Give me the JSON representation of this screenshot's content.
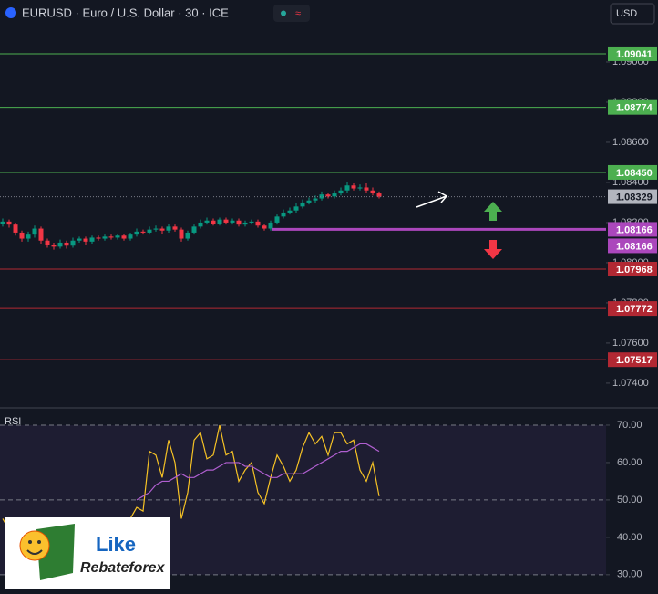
{
  "chart_data": [
    {
      "type": "candlestick",
      "title": "EURUSD · Euro / U.S. Dollar · 30 · ICE",
      "currency": "USD",
      "ylim": [
        1.07286,
        1.09309
      ],
      "yticks": [
        {
          "value": 1.074,
          "label": "1.07400"
        },
        {
          "value": 1.076,
          "label": "1.07600"
        },
        {
          "value": 1.078,
          "label": "1.07800"
        },
        {
          "value": 1.08,
          "label": "1.08000"
        },
        {
          "value": 1.082,
          "label": "1.08200"
        },
        {
          "value": 1.084,
          "label": "1.08400"
        },
        {
          "value": 1.086,
          "label": "1.08600"
        },
        {
          "value": 1.088,
          "label": "1.08800"
        },
        {
          "value": 1.09,
          "label": "1.09000"
        }
      ],
      "up_color": "#089981",
      "down_color": "#f23645",
      "open": [
        1.08195,
        1.08205,
        1.0819,
        1.0815,
        1.0812,
        1.0814,
        1.0817,
        1.0811,
        1.0809,
        1.0808,
        1.081,
        1.08085,
        1.0811,
        1.0812,
        1.08105,
        1.08125,
        1.0812,
        1.0813,
        1.08125,
        1.08135,
        1.0812,
        1.0814,
        1.08155,
        1.0815,
        1.08165,
        1.0817,
        1.0816,
        1.0818,
        1.08165,
        1.0812,
        1.0815,
        1.0818,
        1.082,
        1.0821,
        1.08195,
        1.08215,
        1.082,
        1.0821,
        1.0819,
        1.082,
        1.08205,
        1.08185,
        1.0817,
        1.082,
        1.0823,
        1.0825,
        1.0826,
        1.0828,
        1.083,
        1.0831,
        1.0832,
        1.0834,
        1.0833,
        1.08345,
        1.0836,
        1.08385,
        1.0837,
        1.08375,
        1.0836,
        1.08345
      ],
      "high": [
        1.0822,
        1.08215,
        1.082,
        1.0816,
        1.08155,
        1.08185,
        1.0818,
        1.0812,
        1.081,
        1.08115,
        1.0811,
        1.08125,
        1.0813,
        1.0813,
        1.08135,
        1.08135,
        1.0814,
        1.0814,
        1.08145,
        1.08145,
        1.0815,
        1.0817,
        1.08165,
        1.0818,
        1.08185,
        1.0818,
        1.08195,
        1.0819,
        1.08175,
        1.0816,
        1.0819,
        1.08215,
        1.08225,
        1.0822,
        1.08225,
        1.08225,
        1.0822,
        1.0822,
        1.0821,
        1.08215,
        1.08215,
        1.08195,
        1.0821,
        1.0824,
        1.08265,
        1.08275,
        1.08295,
        1.08315,
        1.08325,
        1.08335,
        1.08355,
        1.0835,
        1.0836,
        1.08375,
        1.084,
        1.08395,
        1.0839,
        1.08395,
        1.08375,
        1.08355
      ],
      "low": [
        1.0818,
        1.08175,
        1.08135,
        1.08105,
        1.08105,
        1.08125,
        1.08095,
        1.08075,
        1.08065,
        1.0807,
        1.0807,
        1.08075,
        1.081,
        1.0809,
        1.08095,
        1.0811,
        1.0811,
        1.08115,
        1.08115,
        1.0811,
        1.0811,
        1.0813,
        1.0814,
        1.0814,
        1.08155,
        1.08145,
        1.0815,
        1.08155,
        1.08105,
        1.0811,
        1.0814,
        1.0817,
        1.0819,
        1.08185,
        1.08185,
        1.0819,
        1.0819,
        1.0818,
        1.0818,
        1.0819,
        1.08175,
        1.0816,
        1.0816,
        1.0819,
        1.0822,
        1.0824,
        1.0825,
        1.0827,
        1.0829,
        1.083,
        1.0831,
        1.0832,
        1.0832,
        1.08335,
        1.0835,
        1.0836,
        1.0836,
        1.0835,
        1.08335,
        1.0832
      ],
      "close": [
        1.08205,
        1.0819,
        1.0815,
        1.0812,
        1.0814,
        1.0817,
        1.0811,
        1.0809,
        1.0808,
        1.081,
        1.08085,
        1.0811,
        1.0812,
        1.08105,
        1.08125,
        1.0812,
        1.0813,
        1.08125,
        1.08135,
        1.0812,
        1.0814,
        1.08155,
        1.0815,
        1.08165,
        1.0817,
        1.0816,
        1.0818,
        1.08165,
        1.0812,
        1.0815,
        1.0818,
        1.082,
        1.0821,
        1.08195,
        1.08215,
        1.082,
        1.0821,
        1.0819,
        1.082,
        1.08205,
        1.08185,
        1.0817,
        1.082,
        1.0823,
        1.0825,
        1.0826,
        1.0828,
        1.083,
        1.0831,
        1.0832,
        1.0834,
        1.0833,
        1.08345,
        1.0836,
        1.08385,
        1.0837,
        1.08375,
        1.0836,
        1.08345,
        1.08329
      ],
      "levels": [
        {
          "price": 1.09041,
          "label": "1.09041",
          "color": "#4caf50"
        },
        {
          "price": 1.08774,
          "label": "1.08774",
          "color": "#4caf50"
        },
        {
          "price": 1.0845,
          "label": "1.08450",
          "color": "#4caf50"
        },
        {
          "price": 1.07968,
          "label": "1.07968",
          "color": "#b22833"
        },
        {
          "price": 1.07772,
          "label": "1.07772",
          "color": "#b22833"
        },
        {
          "price": 1.07517,
          "label": "1.07517",
          "color": "#b22833"
        }
      ],
      "pivot": {
        "price": 1.08166,
        "label": "1.08166",
        "color": "#ab47bc"
      }
    },
    {
      "type": "line",
      "title": "RSI",
      "ylim": [
        26.3,
        73.9
      ],
      "yticks": [
        {
          "value": 30,
          "label": "30.00"
        },
        {
          "value": 40,
          "label": "40.00"
        },
        {
          "value": 50,
          "label": "50.00"
        },
        {
          "value": 60,
          "label": "60.00"
        },
        {
          "value": 70,
          "label": "70.00"
        }
      ],
      "hlines": [
        30,
        50,
        70
      ],
      "series": [
        {
          "color": "#f7c325",
          "values": [
            45,
            42,
            38,
            35,
            37,
            42,
            36,
            33,
            31,
            36,
            34,
            39,
            41,
            38,
            42,
            41,
            43,
            42,
            44,
            41,
            45,
            48,
            47,
            63,
            62,
            56,
            66,
            60,
            45,
            52,
            66,
            68,
            61,
            62,
            70,
            62,
            63,
            55,
            58,
            60,
            52,
            49,
            56,
            62,
            59,
            55,
            58,
            64,
            68,
            65,
            67,
            62,
            68,
            68,
            65,
            66,
            58,
            55,
            60,
            51
          ]
        },
        {
          "color": "#b05fd0",
          "values": [
            null,
            null,
            null,
            null,
            null,
            null,
            null,
            null,
            null,
            null,
            null,
            null,
            null,
            null,
            null,
            null,
            null,
            null,
            null,
            null,
            null,
            50,
            51,
            52,
            54,
            55,
            55,
            56,
            57,
            56,
            56,
            57,
            58,
            58,
            59,
            60,
            60,
            60,
            59,
            59,
            58,
            57,
            56,
            56,
            57,
            57,
            57,
            57,
            58,
            59,
            60,
            61,
            62,
            63,
            63,
            64,
            65,
            65,
            64,
            63
          ]
        }
      ]
    }
  ],
  "logo": {
    "brand": "Like",
    "name": "Rebateforex"
  }
}
